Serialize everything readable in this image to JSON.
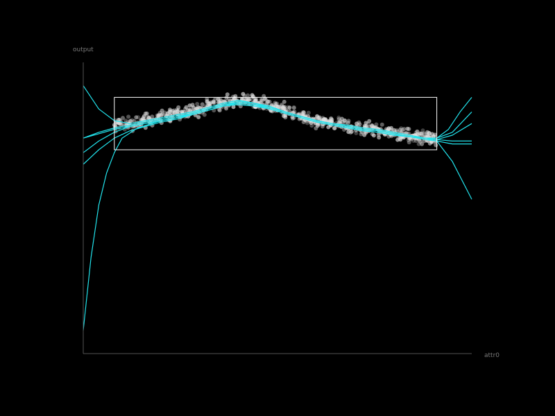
{
  "chart_data": {
    "type": "scatter",
    "xlabel": "attr0",
    "ylabel": "output",
    "grid": false,
    "colors": {
      "background": "#000000",
      "axis": "#555555",
      "points": "#e0e0e0",
      "curves": "#22e5ee",
      "box": "#ffffff"
    },
    "xlim": [
      0,
      1
    ],
    "ylim": [
      0,
      1
    ],
    "selection_box": {
      "x": [
        0.08,
        0.91
      ],
      "y": [
        0.7,
        0.88
      ]
    },
    "data_trend": {
      "x": [
        0.08,
        0.12,
        0.16,
        0.2,
        0.24,
        0.28,
        0.32,
        0.36,
        0.4,
        0.44,
        0.48,
        0.52,
        0.56,
        0.6,
        0.64,
        0.68,
        0.72,
        0.76,
        0.8,
        0.84,
        0.88,
        0.91
      ],
      "y": [
        0.785,
        0.79,
        0.8,
        0.81,
        0.82,
        0.83,
        0.845,
        0.86,
        0.87,
        0.865,
        0.85,
        0.835,
        0.815,
        0.8,
        0.79,
        0.785,
        0.775,
        0.77,
        0.76,
        0.75,
        0.74,
        0.735
      ]
    },
    "series": [
      {
        "x": [
          0.0,
          0.04,
          0.08,
          0.12,
          0.16,
          0.2,
          0.24,
          0.28,
          0.32,
          0.36,
          0.4,
          0.44,
          0.48,
          0.52,
          0.56,
          0.6,
          0.64,
          0.68,
          0.72,
          0.76,
          0.8,
          0.84,
          0.88,
          0.91,
          0.95,
          1.0
        ],
        "y": [
          0.92,
          0.84,
          0.8,
          0.79,
          0.8,
          0.81,
          0.82,
          0.83,
          0.845,
          0.86,
          0.87,
          0.86,
          0.85,
          0.83,
          0.815,
          0.8,
          0.79,
          0.785,
          0.775,
          0.77,
          0.76,
          0.75,
          0.74,
          0.73,
          0.66,
          0.53
        ]
      },
      {
        "x": [
          0.0,
          0.04,
          0.08,
          0.12,
          0.16,
          0.2,
          0.24,
          0.28,
          0.32,
          0.36,
          0.4,
          0.44,
          0.48,
          0.52,
          0.56,
          0.6,
          0.64,
          0.68,
          0.72,
          0.76,
          0.8,
          0.84,
          0.88,
          0.91,
          0.95,
          1.0
        ],
        "y": [
          0.74,
          0.76,
          0.775,
          0.785,
          0.795,
          0.805,
          0.815,
          0.825,
          0.84,
          0.855,
          0.86,
          0.855,
          0.845,
          0.83,
          0.815,
          0.8,
          0.79,
          0.78,
          0.77,
          0.765,
          0.755,
          0.745,
          0.735,
          0.73,
          0.72,
          0.72
        ]
      },
      {
        "x": [
          0.0,
          0.04,
          0.08,
          0.12,
          0.16,
          0.2,
          0.24,
          0.28,
          0.32,
          0.36,
          0.4,
          0.44,
          0.48,
          0.52,
          0.56,
          0.6,
          0.64,
          0.68,
          0.72,
          0.76,
          0.8,
          0.84,
          0.88,
          0.91,
          0.95,
          1.0
        ],
        "y": [
          0.69,
          0.73,
          0.76,
          0.78,
          0.79,
          0.8,
          0.81,
          0.825,
          0.84,
          0.855,
          0.865,
          0.86,
          0.845,
          0.83,
          0.815,
          0.8,
          0.79,
          0.78,
          0.77,
          0.765,
          0.755,
          0.745,
          0.74,
          0.735,
          0.75,
          0.79
        ]
      },
      {
        "x": [
          0.0,
          0.04,
          0.08,
          0.12,
          0.16,
          0.2,
          0.24,
          0.28,
          0.32,
          0.36,
          0.4,
          0.44,
          0.48,
          0.52,
          0.56,
          0.6,
          0.64,
          0.68,
          0.72,
          0.76,
          0.8,
          0.84,
          0.88,
          0.91,
          0.95,
          1.0
        ],
        "y": [
          0.65,
          0.7,
          0.74,
          0.765,
          0.78,
          0.795,
          0.805,
          0.82,
          0.835,
          0.85,
          0.86,
          0.855,
          0.84,
          0.825,
          0.81,
          0.795,
          0.785,
          0.775,
          0.765,
          0.76,
          0.75,
          0.745,
          0.74,
          0.74,
          0.76,
          0.83
        ]
      },
      {
        "x": [
          0.0,
          0.02,
          0.04,
          0.06,
          0.08,
          0.1,
          0.14,
          0.2,
          0.24,
          0.28,
          0.32,
          0.36,
          0.4,
          0.44,
          0.48,
          0.52,
          0.56,
          0.6,
          0.64,
          0.68,
          0.72,
          0.76,
          0.8,
          0.84,
          0.88,
          0.91,
          0.94,
          0.97,
          1.0
        ],
        "y": [
          0.08,
          0.33,
          0.51,
          0.62,
          0.69,
          0.74,
          0.775,
          0.8,
          0.81,
          0.825,
          0.84,
          0.855,
          0.865,
          0.86,
          0.845,
          0.83,
          0.815,
          0.8,
          0.79,
          0.78,
          0.77,
          0.765,
          0.755,
          0.745,
          0.74,
          0.74,
          0.77,
          0.83,
          0.88
        ]
      },
      {
        "x": [
          0.0,
          0.04,
          0.08,
          0.12,
          0.16,
          0.2,
          0.24,
          0.28,
          0.32,
          0.36,
          0.4,
          0.44,
          0.48,
          0.52,
          0.56,
          0.6,
          0.64,
          0.68,
          0.72,
          0.76,
          0.8,
          0.84,
          0.88,
          0.91,
          0.95,
          1.0
        ],
        "y": [
          0.74,
          0.755,
          0.77,
          0.78,
          0.79,
          0.8,
          0.81,
          0.82,
          0.835,
          0.85,
          0.855,
          0.85,
          0.84,
          0.825,
          0.81,
          0.795,
          0.785,
          0.775,
          0.765,
          0.76,
          0.75,
          0.745,
          0.74,
          0.735,
          0.73,
          0.73
        ]
      }
    ]
  }
}
